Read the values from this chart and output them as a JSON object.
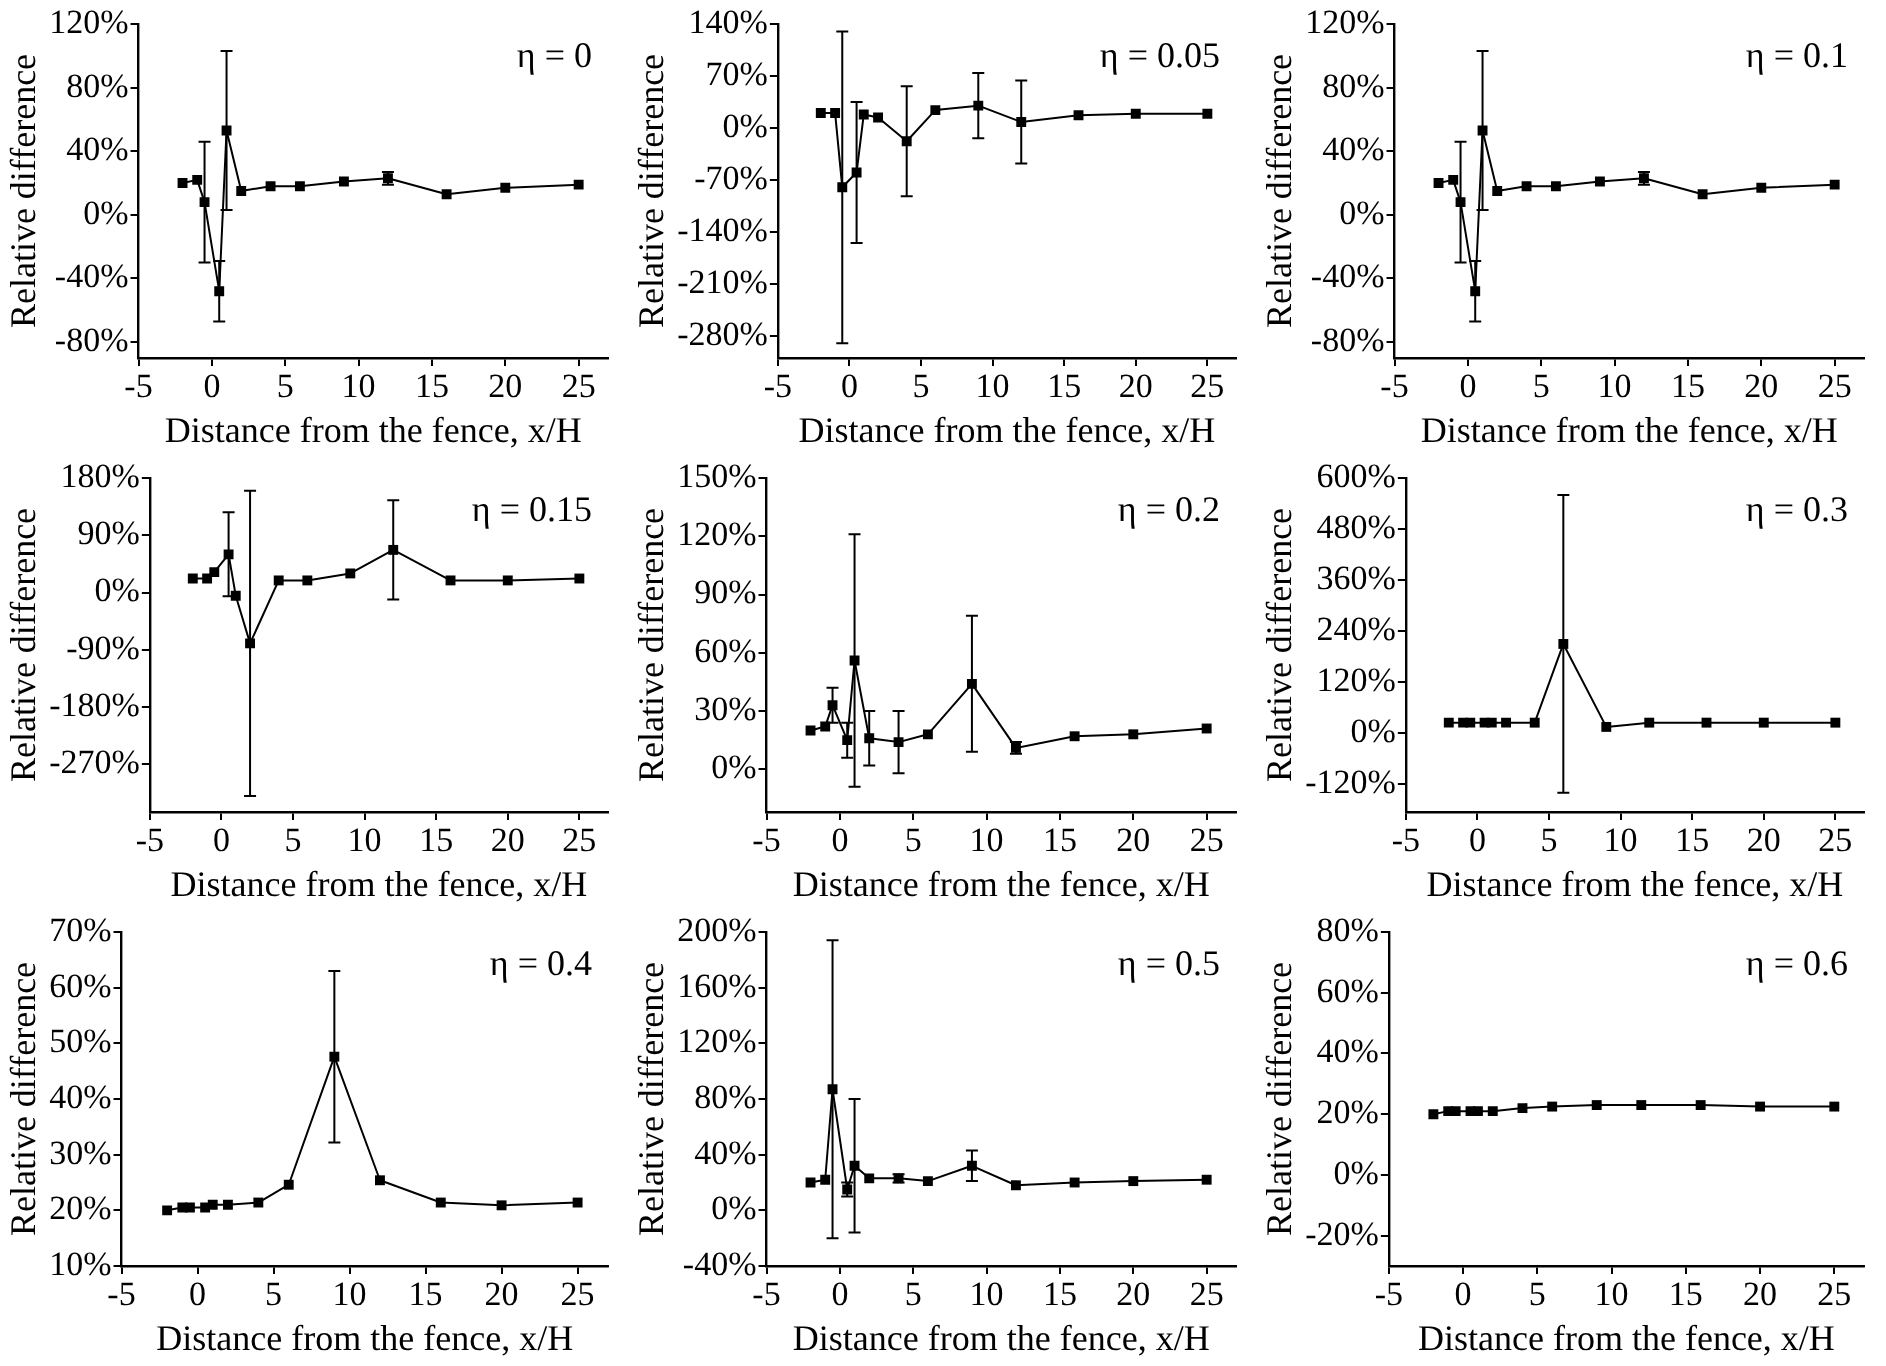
{
  "chart_data": [
    {
      "type": "line",
      "annotations": [
        "η = 0"
      ],
      "xlabel": "Distance from the fence, x/H",
      "ylabel": "Relative difference",
      "marker": "square",
      "grid": false,
      "x": [
        -2,
        -1,
        -0.5,
        0.5,
        1,
        2,
        4,
        6,
        9,
        12,
        16,
        20,
        25
      ],
      "xlim": [
        -5,
        27
      ],
      "xticks": [
        -5,
        0,
        5,
        10,
        15,
        20,
        25
      ],
      "ylim": [
        -90,
        120
      ],
      "yticks": [
        {
          "value": -80,
          "label": "-80%"
        },
        {
          "value": -40,
          "label": "-40%"
        },
        {
          "value": 0,
          "label": "0%"
        },
        {
          "value": 40,
          "label": "40%"
        },
        {
          "value": 80,
          "label": "80%"
        },
        {
          "value": 120,
          "label": "120%"
        }
      ],
      "series": [
        {
          "color": "#000000",
          "values": [
            20,
            22,
            8,
            -48,
            53,
            15,
            18,
            18,
            21,
            23,
            13,
            17,
            19
          ],
          "errors": [
            null,
            null,
            38,
            19,
            50,
            null,
            null,
            null,
            null,
            4,
            null,
            null,
            null
          ]
        }
      ]
    },
    {
      "type": "line",
      "annotations": [
        "η = 0.05"
      ],
      "xlabel": "Distance from the fence, x/H",
      "ylabel": "Relative difference",
      "marker": "square",
      "grid": false,
      "x": [
        -2,
        -1,
        -0.5,
        0.5,
        1,
        2,
        4,
        6,
        9,
        12,
        16,
        20,
        25
      ],
      "xlim": [
        -5,
        27
      ],
      "xticks": [
        -5,
        0,
        5,
        10,
        15,
        20,
        25
      ],
      "ylim": [
        -310,
        140
      ],
      "yticks": [
        {
          "value": -280,
          "label": "-280%"
        },
        {
          "value": -210,
          "label": "-210%"
        },
        {
          "value": -140,
          "label": "-140%"
        },
        {
          "value": -70,
          "label": "-70%"
        },
        {
          "value": 0,
          "label": "0%"
        },
        {
          "value": 70,
          "label": "70%"
        },
        {
          "value": 140,
          "label": "140%"
        }
      ],
      "series": [
        {
          "color": "#000000",
          "values": [
            20,
            20,
            -80,
            -60,
            18,
            14,
            -18,
            24,
            30,
            8,
            17,
            19,
            19
          ],
          "errors": [
            null,
            null,
            210,
            95,
            null,
            null,
            74,
            null,
            44,
            56,
            null,
            null,
            null
          ]
        }
      ]
    },
    {
      "type": "line",
      "annotations": [
        "η = 0.1"
      ],
      "xlabel": "Distance from the fence, x/H",
      "ylabel": "Relative difference",
      "marker": "square",
      "grid": false,
      "x": [
        -2,
        -1,
        -0.5,
        0.5,
        1,
        2,
        4,
        6,
        9,
        12,
        16,
        20,
        25
      ],
      "xlim": [
        -5,
        27
      ],
      "xticks": [
        -5,
        0,
        5,
        10,
        15,
        20,
        25
      ],
      "ylim": [
        -90,
        120
      ],
      "yticks": [
        {
          "value": -80,
          "label": "-80%"
        },
        {
          "value": -40,
          "label": "-40%"
        },
        {
          "value": 0,
          "label": "0%"
        },
        {
          "value": 40,
          "label": "40%"
        },
        {
          "value": 80,
          "label": "80%"
        },
        {
          "value": 120,
          "label": "120%"
        }
      ],
      "series": [
        {
          "color": "#000000",
          "values": [
            20,
            22,
            8,
            -48,
            53,
            15,
            18,
            18,
            21,
            23,
            13,
            17,
            19
          ],
          "errors": [
            null,
            null,
            38,
            19,
            50,
            null,
            null,
            null,
            null,
            4,
            null,
            null,
            null
          ]
        }
      ]
    },
    {
      "type": "line",
      "annotations": [
        "η = 0.15"
      ],
      "xlabel": "Distance from the fence, x/H",
      "ylabel": "Relative difference",
      "marker": "square",
      "grid": false,
      "x": [
        -2,
        -1,
        -0.5,
        0.5,
        1,
        2,
        4,
        6,
        9,
        12,
        16,
        20,
        25
      ],
      "xlim": [
        -5,
        27
      ],
      "xticks": [
        -5,
        0,
        5,
        10,
        15,
        20,
        25
      ],
      "ylim": [
        -345,
        180
      ],
      "yticks": [
        {
          "value": -270,
          "label": "-270%"
        },
        {
          "value": -180,
          "label": "-180%"
        },
        {
          "value": -90,
          "label": "-90%"
        },
        {
          "value": 0,
          "label": "0%"
        },
        {
          "value": 90,
          "label": "90%"
        },
        {
          "value": 180,
          "label": "180%"
        }
      ],
      "series": [
        {
          "color": "#000000",
          "values": [
            22,
            22,
            32,
            60,
            -5,
            -80,
            19,
            19,
            30,
            67,
            19,
            19,
            22
          ],
          "errors": [
            null,
            null,
            null,
            66,
            null,
            240,
            null,
            null,
            null,
            78,
            null,
            null,
            null
          ]
        }
      ]
    },
    {
      "type": "line",
      "annotations": [
        "η = 0.2"
      ],
      "xlabel": "Distance from the fence, x/H",
      "ylabel": "Relative difference",
      "marker": "square",
      "grid": false,
      "x": [
        -2,
        -1,
        -0.5,
        0.5,
        1,
        2,
        4,
        6,
        9,
        12,
        16,
        20,
        25
      ],
      "xlim": [
        -5,
        27
      ],
      "xticks": [
        -5,
        0,
        5,
        10,
        15,
        20,
        25
      ],
      "ylim": [
        -22,
        150
      ],
      "yticks": [
        {
          "value": 0,
          "label": "0%"
        },
        {
          "value": 30,
          "label": "30%"
        },
        {
          "value": 60,
          "label": "60%"
        },
        {
          "value": 90,
          "label": "90%"
        },
        {
          "value": 120,
          "label": "120%"
        },
        {
          "value": 150,
          "label": "150%"
        }
      ],
      "series": [
        {
          "color": "#000000",
          "values": [
            20,
            22,
            33,
            15,
            56,
            16,
            14,
            18,
            44,
            11,
            17,
            18,
            21
          ],
          "errors": [
            null,
            null,
            9,
            9,
            65,
            14,
            16,
            null,
            35,
            3,
            null,
            null,
            null
          ]
        }
      ]
    },
    {
      "type": "line",
      "annotations": [
        "η = 0.3"
      ],
      "xlabel": "Distance from the fence, x/H",
      "ylabel": "Relative difference",
      "marker": "square",
      "grid": false,
      "x": [
        -2,
        -1,
        -0.5,
        0.5,
        1,
        2,
        4,
        6,
        9,
        12,
        16,
        20,
        25
      ],
      "xlim": [
        -5,
        27
      ],
      "xticks": [
        -5,
        0,
        5,
        10,
        15,
        20,
        25
      ],
      "ylim": [
        -185,
        600
      ],
      "yticks": [
        {
          "value": -120,
          "label": "-120%"
        },
        {
          "value": 0,
          "label": "0%"
        },
        {
          "value": 120,
          "label": "120%"
        },
        {
          "value": 240,
          "label": "240%"
        },
        {
          "value": 360,
          "label": "360%"
        },
        {
          "value": 480,
          "label": "480%"
        },
        {
          "value": 600,
          "label": "600%"
        }
      ],
      "series": [
        {
          "color": "#000000",
          "values": [
            25,
            25,
            25,
            25,
            25,
            25,
            25,
            210,
            15,
            25,
            25,
            25,
            25
          ],
          "errors": [
            null,
            null,
            null,
            null,
            null,
            null,
            null,
            350,
            null,
            null,
            null,
            null,
            null
          ]
        }
      ]
    },
    {
      "type": "line",
      "annotations": [
        "η = 0.4"
      ],
      "xlabel": "Distance from the fence, x/H",
      "ylabel": "Relative difference",
      "marker": "square",
      "grid": false,
      "x": [
        -2,
        -1,
        -0.5,
        0.5,
        1,
        2,
        4,
        6,
        9,
        12,
        16,
        20,
        25
      ],
      "xlim": [
        -5,
        27
      ],
      "xticks": [
        -5,
        0,
        5,
        10,
        15,
        20,
        25
      ],
      "ylim": [
        10,
        70
      ],
      "yticks": [
        {
          "value": 10,
          "label": "10%"
        },
        {
          "value": 20,
          "label": "20%"
        },
        {
          "value": 30,
          "label": "30%"
        },
        {
          "value": 40,
          "label": "40%"
        },
        {
          "value": 50,
          "label": "50%"
        },
        {
          "value": 60,
          "label": "60%"
        },
        {
          "value": 70,
          "label": "70%"
        }
      ],
      "series": [
        {
          "color": "#000000",
          "values": [
            20,
            20.5,
            20.5,
            20.5,
            21,
            21,
            21.4,
            24.6,
            47.6,
            25.4,
            21.4,
            20.9,
            21.4
          ],
          "errors": [
            null,
            null,
            null,
            null,
            null,
            null,
            null,
            null,
            15.4,
            null,
            null,
            null,
            null
          ]
        }
      ]
    },
    {
      "type": "line",
      "annotations": [
        "η = 0.5"
      ],
      "xlabel": "Distance from the fence, x/H",
      "ylabel": "Relative difference",
      "marker": "square",
      "grid": false,
      "x": [
        -2,
        -1,
        -0.5,
        0.5,
        1,
        2,
        4,
        6,
        9,
        12,
        16,
        20,
        25
      ],
      "xlim": [
        -5,
        27
      ],
      "xticks": [
        -5,
        0,
        5,
        10,
        15,
        20,
        25
      ],
      "ylim": [
        -40,
        200
      ],
      "yticks": [
        {
          "value": -40,
          "label": "-40%"
        },
        {
          "value": 0,
          "label": "0%"
        },
        {
          "value": 40,
          "label": "40%"
        },
        {
          "value": 80,
          "label": "80%"
        },
        {
          "value": 120,
          "label": "120%"
        },
        {
          "value": 160,
          "label": "160%"
        },
        {
          "value": 200,
          "label": "200%"
        }
      ],
      "series": [
        {
          "color": "#000000",
          "values": [
            20,
            22,
            87,
            15,
            32,
            23,
            23,
            21,
            32,
            18,
            20,
            21,
            22
          ],
          "errors": [
            null,
            null,
            107,
            5,
            48,
            null,
            3,
            null,
            11,
            null,
            null,
            null,
            null
          ]
        }
      ]
    },
    {
      "type": "line",
      "annotations": [
        "η = 0.6"
      ],
      "xlabel": "Distance from the fence, x/H",
      "ylabel": "Relative difference",
      "marker": "square",
      "grid": false,
      "x": [
        -2,
        -1,
        -0.5,
        0.5,
        1,
        2,
        4,
        6,
        9,
        12,
        16,
        20,
        25
      ],
      "xlim": [
        -5,
        27
      ],
      "xticks": [
        -5,
        0,
        5,
        10,
        15,
        20,
        25
      ],
      "ylim": [
        -30,
        80
      ],
      "yticks": [
        {
          "value": -20,
          "label": "-20%"
        },
        {
          "value": 0,
          "label": "0%"
        },
        {
          "value": 20,
          "label": "20%"
        },
        {
          "value": 40,
          "label": "40%"
        },
        {
          "value": 60,
          "label": "60%"
        },
        {
          "value": 80,
          "label": "80%"
        }
      ],
      "series": [
        {
          "color": "#000000",
          "values": [
            20,
            21,
            21,
            21,
            21,
            21,
            22,
            22.5,
            23,
            23,
            23,
            22.5,
            22.5
          ]
        }
      ]
    }
  ]
}
